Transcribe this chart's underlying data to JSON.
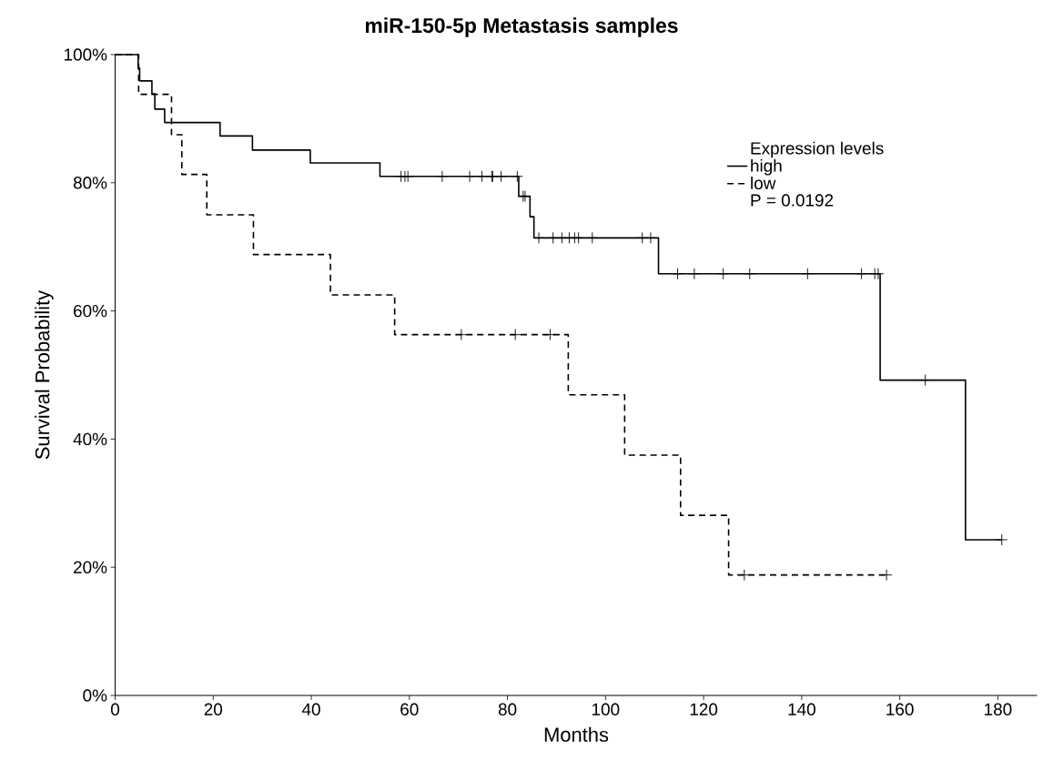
{
  "chart_data": {
    "type": "step",
    "title": "miR-150-5p Metastasis samples",
    "xlabel": "Months",
    "ylabel": "Survival Probability",
    "legend_title": "Expression levels",
    "annotations": [
      "P = 0.0192"
    ],
    "series": [
      {
        "name": "high",
        "color": "#000000",
        "line_style": "solid",
        "marker": "none",
        "x": [
          0,
          4.7,
          5.0,
          7.5,
          8.1,
          10.1,
          21.4,
          28.0,
          39.8,
          54.0,
          82.3,
          84.6,
          85.4,
          110.8,
          156.0,
          173.4,
          180.8
        ],
        "values": [
          100,
          97.9,
          95.9,
          93.9,
          91.5,
          89.4,
          87.3,
          85.1,
          83.1,
          81.0,
          77.9,
          74.7,
          71.4,
          65.8,
          49.2,
          24.3,
          24.3
        ]
      },
      {
        "name": "low",
        "color": "#000000",
        "line_style": "dashed",
        "marker": "none",
        "x": [
          0,
          4.8,
          11.5,
          13.6,
          18.7,
          28.2,
          43.9,
          57.0,
          92.4,
          103.9,
          115.3,
          125.1,
          157.3
        ],
        "values": [
          100,
          93.8,
          87.5,
          81.3,
          75.0,
          68.8,
          62.5,
          56.3,
          46.9,
          37.5,
          28.1,
          18.8,
          18.8
        ]
      },
      {
        "type": "scatter",
        "color": "#000000",
        "marker": "cross",
        "x": [
          58.3,
          59.1,
          59.7,
          66.7,
          72.3,
          74.8,
          76.8,
          77.0,
          78.7,
          82.0,
          83.2,
          83.6,
          86.4,
          89.3,
          91.1,
          92.6,
          93.7,
          94.5,
          97.3,
          107.5,
          109.2,
          114.7,
          118.1,
          124.0,
          129.4,
          141.2,
          152.2,
          154.9,
          155.6,
          165.2,
          180.8
        ],
        "values": [
          81.0,
          81.0,
          81.0,
          81.0,
          81.0,
          81.0,
          81.0,
          81.0,
          81.0,
          81.0,
          77.9,
          77.9,
          71.4,
          71.4,
          71.4,
          71.4,
          71.4,
          71.4,
          71.4,
          71.4,
          71.4,
          65.8,
          65.8,
          65.8,
          65.8,
          65.8,
          65.8,
          65.8,
          65.8,
          49.2,
          24.3
        ]
      },
      {
        "type": "scatter",
        "color": "#000000",
        "marker": "cross",
        "x": [
          70.6,
          81.6,
          88.7,
          128.3,
          157.3
        ],
        "values": [
          56.3,
          56.3,
          56.3,
          18.8,
          18.8
        ]
      }
    ],
    "xlim": [
      0,
      188
    ],
    "ylim": [
      0,
      100
    ],
    "xticks": [
      0,
      20,
      40,
      60,
      80,
      100,
      120,
      140,
      160,
      180
    ],
    "yticks": [
      {
        "value": 0,
        "label": "0%"
      },
      {
        "value": 20,
        "label": "20%"
      },
      {
        "value": 40,
        "label": "40%"
      },
      {
        "value": 60,
        "label": "60%"
      },
      {
        "value": 80,
        "label": "80%"
      },
      {
        "value": 100,
        "label": "100%"
      }
    ],
    "grid": false,
    "legend": "top right"
  }
}
